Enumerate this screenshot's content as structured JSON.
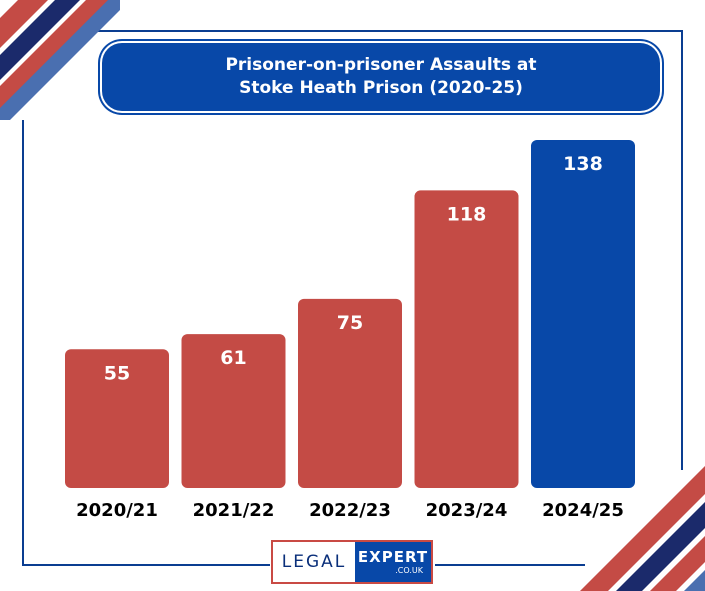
{
  "colors": {
    "accent_red": "#c44b45",
    "accent_blue": "#0848a8",
    "frame_navy": "#0a3d91",
    "dark_navy": "#1b2a6b"
  },
  "title": {
    "line1": "Prisoner-on-prisoner Assaults at",
    "line2": "Stoke Heath Prison (2020-25)"
  },
  "chart_data": {
    "type": "bar",
    "title": "Prisoner-on-prisoner Assaults at Stoke Heath Prison (2020-25)",
    "categories": [
      "2020/21",
      "2021/22",
      "2022/23",
      "2023/24",
      "2024/25"
    ],
    "values": [
      55,
      61,
      75,
      118,
      138
    ],
    "bar_colors": [
      "#c44b45",
      "#c44b45",
      "#c44b45",
      "#c44b45",
      "#0848a8"
    ],
    "data_labels": true,
    "ylim": [
      0,
      138
    ],
    "grid": false,
    "legend": "none",
    "xlabel": "",
    "ylabel": ""
  },
  "logo": {
    "left_text": "LEGAL",
    "right_text": "EXPERT",
    "domain": ".CO.UK"
  }
}
